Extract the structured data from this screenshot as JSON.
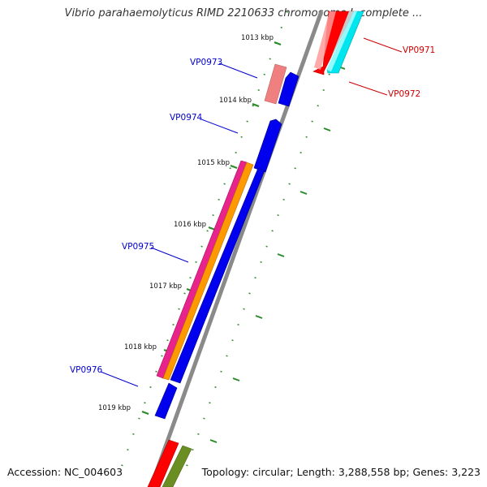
{
  "title": "Vibrio parahaemolyticus RIMD 2210633 chromosome I, complete ...",
  "footer": {
    "accession": "Accession: NC_004603",
    "summary": "Topology: circular; Length: 3,288,558 bp; Genes: 3,223"
  },
  "colors": {
    "backbone": "#8a8a8a",
    "tick": "#2a8a2a",
    "forward_label": "#cc0000",
    "reverse_label": "#0000cc"
  },
  "scale_labels": [
    "1013 kbp",
    "1014 kbp",
    "1015 kbp",
    "1016 kbp",
    "1017 kbp",
    "1018 kbp",
    "1019 kbp"
  ],
  "gene_labels": {
    "forward": [
      "VP0971",
      "VP0972"
    ],
    "reverse": [
      "VP0973",
      "VP0974",
      "VP0975",
      "VP0976"
    ]
  },
  "feature_colors": [
    "#ff0000",
    "#00e5ee",
    "#f08080",
    "#0000ee",
    "#e8238c",
    "#ff9900",
    "#6b8e23"
  ]
}
